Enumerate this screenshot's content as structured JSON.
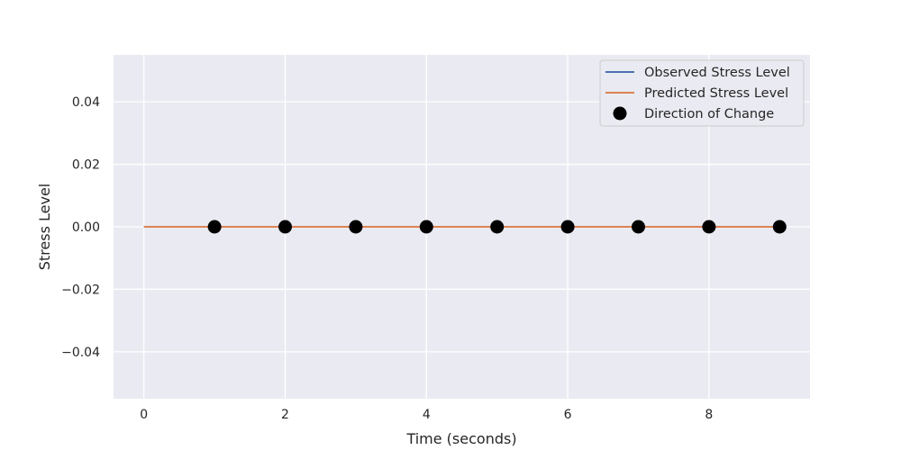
{
  "chart_data": {
    "type": "line",
    "title": "",
    "xlabel": "Time (seconds)",
    "ylabel": "Stress Level",
    "xlim": [
      -0.43,
      9.43
    ],
    "ylim": [
      -0.055,
      0.055
    ],
    "xticks": [
      0,
      2,
      4,
      6,
      8
    ],
    "xtick_labels": [
      "0",
      "2",
      "4",
      "6",
      "8"
    ],
    "yticks": [
      -0.04,
      -0.02,
      0.0,
      0.02,
      0.04
    ],
    "ytick_labels": [
      "−0.04",
      "−0.02",
      "0.00",
      "0.02",
      "0.04"
    ],
    "grid": true,
    "legend_position": "top-right",
    "series": [
      {
        "name": "Observed Stress Level",
        "kind": "line",
        "color": "#4c72b0",
        "x": [
          0,
          1,
          2,
          3,
          4,
          5,
          6,
          7,
          8,
          9
        ],
        "y": [
          0,
          0,
          0,
          0,
          0,
          0,
          0,
          0,
          0,
          0
        ]
      },
      {
        "name": "Predicted Stress Level",
        "kind": "line",
        "color": "#dd8452",
        "x": [
          0,
          1,
          2,
          3,
          4,
          5,
          6,
          7,
          8,
          9
        ],
        "y": [
          0,
          0,
          0,
          0,
          0,
          0,
          0,
          0,
          0,
          0
        ]
      },
      {
        "name": "Direction of Change",
        "kind": "scatter",
        "color": "#000000",
        "x": [
          1,
          2,
          3,
          4,
          5,
          6,
          7,
          8,
          9
        ],
        "y": [
          0,
          0,
          0,
          0,
          0,
          0,
          0,
          0,
          0
        ]
      }
    ]
  },
  "style": {
    "plot_background": "#eaeaf2",
    "grid_color": "#ffffff",
    "text_color": "#262626"
  }
}
